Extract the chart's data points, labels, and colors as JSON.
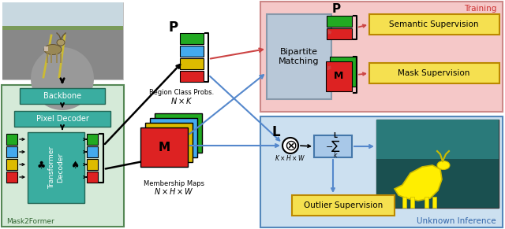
{
  "bg_color": "#ffffff",
  "training_bg": "#f5c8c8",
  "inference_bg": "#cce0f0",
  "mask2former_bg": "#d5ead8",
  "teal": "#3aada0",
  "bipartite_color": "#b8c8d8",
  "sum_box_color": "#a8c8e8",
  "outlier_box_color": "#f5e050",
  "supervision_box_color": "#f5e050",
  "green": "#22aa22",
  "cyan": "#44aaee",
  "yellow": "#ddbb00",
  "red": "#dd2222",
  "colors_4": [
    "#22aa22",
    "#44aaee",
    "#ddbb00",
    "#dd2222"
  ],
  "training_label": "Training",
  "inference_label": "Unknown Inference",
  "mask2former_label": "Mask2Former"
}
